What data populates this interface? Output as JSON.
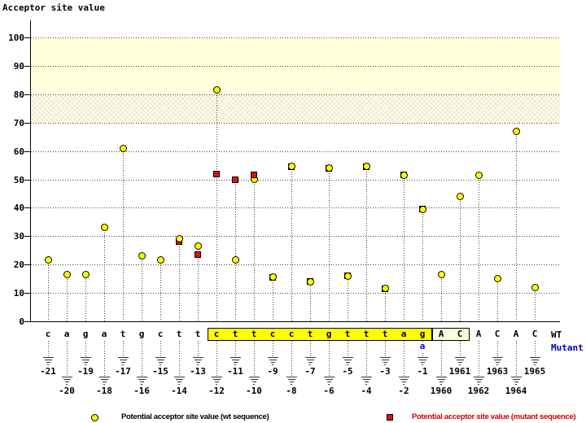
{
  "title": "Acceptor site value",
  "wt_row_label": "WT",
  "mutant_row_label": "Mutant",
  "legend": {
    "wt": "Potential acceptor site value (wt sequence)",
    "mutant": "Potential acceptor site value (mutant sequence)"
  },
  "colors": {
    "wt_point": "#ffff00",
    "mutant_point": "#dd1111",
    "band_solid": "#ffffdc",
    "band_hatch_line": "#ebe7bb",
    "acceptor_box": "#ffff00",
    "exon_box": "#ffffdc",
    "mutant_text": "#0000cc",
    "legend_mutant_text": "#cc0000"
  },
  "chart_data": {
    "type": "scatter",
    "subtype": "lollipop-stems",
    "title": "Acceptor site value",
    "xlabel": "",
    "ylabel": "Acceptor site value",
    "ylim": [
      0,
      107
    ],
    "y_ticks": [
      100,
      90,
      80,
      70,
      60,
      50,
      40,
      30,
      20,
      10,
      0
    ],
    "grid": "dotted horizontal every 10",
    "legend_position": "bottom",
    "highlight_bands": [
      {
        "from": 80,
        "to": 100,
        "style": "solid"
      },
      {
        "from": 70,
        "to": 80,
        "style": "crosshatch"
      }
    ],
    "series_names": [
      "wt",
      "mutant"
    ],
    "positions": [
      {
        "pos": "-21",
        "wt_base": "c",
        "wt": 21.5,
        "mut": null
      },
      {
        "pos": "-20",
        "wt_base": "a",
        "wt": 16.5,
        "mut": null
      },
      {
        "pos": "-19",
        "wt_base": "g",
        "wt": 16.5,
        "mut": null
      },
      {
        "pos": "-18",
        "wt_base": "a",
        "wt": 33,
        "mut": null
      },
      {
        "pos": "-17",
        "wt_base": "t",
        "wt": 61,
        "mut": null
      },
      {
        "pos": "-16",
        "wt_base": "g",
        "wt": 23,
        "mut": null
      },
      {
        "pos": "-15",
        "wt_base": "c",
        "wt": 21.5,
        "mut": null
      },
      {
        "pos": "-14",
        "wt_base": "t",
        "wt": 29,
        "mut": 28
      },
      {
        "pos": "-13",
        "wt_base": "t",
        "wt": 26.5,
        "mut": 23.5
      },
      {
        "pos": "-12",
        "wt_base": "c",
        "wt": 81.5,
        "mut": 52
      },
      {
        "pos": "-11",
        "wt_base": "t",
        "wt": 21.5,
        "mut": 50
      },
      {
        "pos": "-10",
        "wt_base": "t",
        "wt": 50,
        "mut": 51.5,
        "mut_front": true
      },
      {
        "pos": "-9",
        "wt_base": "c",
        "wt": 15.5,
        "mut": 15.5
      },
      {
        "pos": "-8",
        "wt_base": "c",
        "wt": 54.5,
        "mut": 54.5
      },
      {
        "pos": "-7",
        "wt_base": "t",
        "wt": 14,
        "mut": 14
      },
      {
        "pos": "-6",
        "wt_base": "g",
        "wt": 54,
        "mut": 54
      },
      {
        "pos": "-5",
        "wt_base": "t",
        "wt": 16,
        "mut": 16
      },
      {
        "pos": "-4",
        "wt_base": "t",
        "wt": 54.5,
        "mut": 54.5
      },
      {
        "pos": "-3",
        "wt_base": "t",
        "wt": 11.5,
        "mut": 11.5
      },
      {
        "pos": "-2",
        "wt_base": "a",
        "wt": 51.5,
        "mut": 51.5
      },
      {
        "pos": "-1",
        "wt_base": "g",
        "wt": 39.5,
        "mut": 39.5
      },
      {
        "pos": "1960",
        "wt_base": "A",
        "wt": 16.5,
        "mut": null
      },
      {
        "pos": "1961",
        "wt_base": "C",
        "wt": 44,
        "mut": null
      },
      {
        "pos": "1962",
        "wt_base": "A",
        "wt": 51.5,
        "mut": null
      },
      {
        "pos": "1963",
        "wt_base": "C",
        "wt": 15,
        "mut": null
      },
      {
        "pos": "1964",
        "wt_base": "A",
        "wt": 67,
        "mut": null
      },
      {
        "pos": "1965",
        "wt_base": "C",
        "wt": 12,
        "mut": null
      }
    ],
    "highlight_boxes": [
      {
        "from_pos": "-12",
        "to_pos": "-1",
        "fill": "#ffff00"
      },
      {
        "from_pos": "1960",
        "to_pos": "1961",
        "fill": "#ffffdc"
      }
    ],
    "mutation": {
      "pos": "-1",
      "wt_base": "g",
      "mutant_base": "a"
    }
  }
}
